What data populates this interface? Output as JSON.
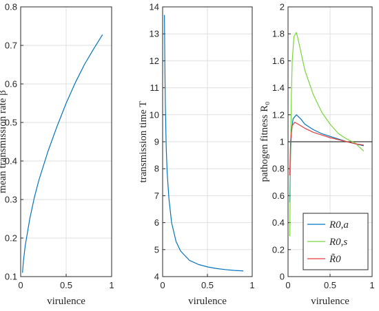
{
  "chart_data": [
    {
      "type": "line",
      "xlabel": "virulence",
      "ylabel": "mean transmission rate β̄",
      "xlim": [
        0,
        1
      ],
      "ylim": [
        0.1,
        0.8
      ],
      "xticks": [
        "0",
        "0.5",
        "1"
      ],
      "yticks": [
        "0.1",
        "0.2",
        "0.3",
        "0.4",
        "0.5",
        "0.6",
        "0.7",
        "0.8"
      ],
      "grid": true,
      "series": [
        {
          "color": "#0072BD",
          "points": [
            [
              0.02,
              0.11
            ],
            [
              0.03,
              0.14
            ],
            [
              0.05,
              0.18
            ],
            [
              0.1,
              0.25
            ],
            [
              0.15,
              0.305
            ],
            [
              0.2,
              0.35
            ],
            [
              0.3,
              0.425
            ],
            [
              0.4,
              0.49
            ],
            [
              0.5,
              0.55
            ],
            [
              0.6,
              0.603
            ],
            [
              0.7,
              0.65
            ],
            [
              0.8,
              0.69
            ],
            [
              0.9,
              0.728
            ]
          ]
        }
      ]
    },
    {
      "type": "line",
      "xlabel": "virulence",
      "ylabel": "transmission time T",
      "xlim": [
        0,
        1
      ],
      "ylim": [
        4,
        14
      ],
      "xticks": [
        "0",
        "0.5",
        "1"
      ],
      "yticks": [
        "4",
        "5",
        "6",
        "7",
        "8",
        "9",
        "10",
        "11",
        "12",
        "13",
        "14"
      ],
      "grid": true,
      "series": [
        {
          "color": "#0072BD",
          "points": [
            [
              0.02,
              13.7
            ],
            [
              0.025,
              11.8
            ],
            [
              0.03,
              10.4
            ],
            [
              0.04,
              8.8
            ],
            [
              0.05,
              7.9
            ],
            [
              0.07,
              6.9
            ],
            [
              0.1,
              6.0
            ],
            [
              0.15,
              5.3
            ],
            [
              0.2,
              4.95
            ],
            [
              0.3,
              4.6
            ],
            [
              0.4,
              4.45
            ],
            [
              0.5,
              4.36
            ],
            [
              0.6,
              4.3
            ],
            [
              0.7,
              4.26
            ],
            [
              0.8,
              4.23
            ],
            [
              0.9,
              4.21
            ]
          ]
        }
      ]
    },
    {
      "type": "line",
      "xlabel": "virulence",
      "ylabel": "pathogen fitness R₀",
      "xlim": [
        0,
        1
      ],
      "ylim": [
        0,
        2
      ],
      "xticks": [
        "0",
        "0.5",
        "1"
      ],
      "yticks": [
        "0",
        "0.2",
        "0.4",
        "0.6",
        "0.8",
        "1",
        "1.2",
        "1.4",
        "1.6",
        "1.8",
        "2"
      ],
      "grid": true,
      "legend": "bottom-right",
      "reference_line": {
        "y": 1,
        "color": "#333333"
      },
      "series": [
        {
          "name": "R0,a",
          "color": "#0072BD",
          "points": [
            [
              0.02,
              0.55
            ],
            [
              0.03,
              0.9
            ],
            [
              0.04,
              1.08
            ],
            [
              0.06,
              1.17
            ],
            [
              0.1,
              1.2
            ],
            [
              0.15,
              1.17
            ],
            [
              0.2,
              1.13
            ],
            [
              0.3,
              1.09
            ],
            [
              0.4,
              1.06
            ],
            [
              0.5,
              1.04
            ],
            [
              0.6,
              1.02
            ],
            [
              0.7,
              1.0
            ],
            [
              0.8,
              0.985
            ],
            [
              0.9,
              0.97
            ]
          ]
        },
        {
          "name": "R0,s",
          "color": "#77D63C",
          "points": [
            [
              0.02,
              0.3
            ],
            [
              0.03,
              0.9
            ],
            [
              0.04,
              1.35
            ],
            [
              0.05,
              1.6
            ],
            [
              0.07,
              1.78
            ],
            [
              0.1,
              1.81
            ],
            [
              0.13,
              1.73
            ],
            [
              0.2,
              1.53
            ],
            [
              0.3,
              1.35
            ],
            [
              0.4,
              1.22
            ],
            [
              0.5,
              1.13
            ],
            [
              0.6,
              1.06
            ],
            [
              0.7,
              1.02
            ],
            [
              0.8,
              0.99
            ],
            [
              0.9,
              0.93
            ]
          ]
        },
        {
          "name": "R̃0",
          "color": "#E33B3B",
          "points": [
            [
              0.02,
              0.75
            ],
            [
              0.03,
              1.0
            ],
            [
              0.05,
              1.12
            ],
            [
              0.08,
              1.145
            ],
            [
              0.12,
              1.13
            ],
            [
              0.2,
              1.1
            ],
            [
              0.3,
              1.07
            ],
            [
              0.4,
              1.05
            ],
            [
              0.5,
              1.03
            ],
            [
              0.6,
              1.015
            ],
            [
              0.7,
              1.0
            ],
            [
              0.8,
              0.985
            ],
            [
              0.9,
              0.975
            ]
          ]
        }
      ]
    }
  ]
}
